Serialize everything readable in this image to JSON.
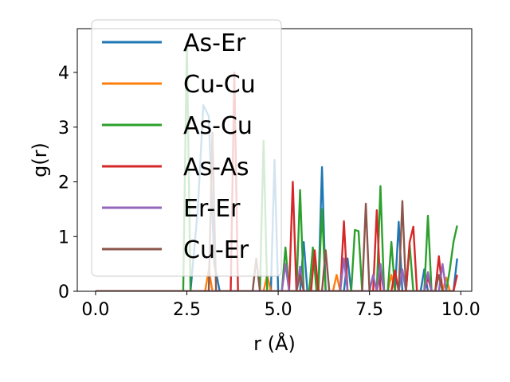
{
  "chart_data": {
    "type": "line",
    "title": "",
    "xlabel": "r (Å)",
    "ylabel": "g(r)",
    "xlim": [
      -0.5,
      10.3
    ],
    "ylim": [
      0,
      4.8
    ],
    "x_ticks": [
      0.0,
      2.5,
      5.0,
      7.5,
      10.0
    ],
    "x_tick_labels": [
      "0.0",
      "2.5",
      "5.0",
      "7.5",
      "10.0"
    ],
    "y_ticks": [
      0,
      1,
      2,
      3,
      4
    ],
    "y_tick_labels": [
      "0",
      "1",
      "2",
      "3",
      "4"
    ],
    "grid": false,
    "legend_position": "upper-left",
    "series": [
      {
        "name": "As-Er",
        "color": "#1f77b4",
        "points": [
          [
            0,
            0
          ],
          [
            2.5,
            0
          ],
          [
            2.6,
            0
          ],
          [
            2.8,
            1.5
          ],
          [
            2.95,
            3.4
          ],
          [
            3.1,
            3.2
          ],
          [
            3.25,
            0.5
          ],
          [
            3.4,
            0
          ],
          [
            4.8,
            0
          ],
          [
            4.9,
            2.4
          ],
          [
            5.0,
            0
          ],
          [
            5.6,
            0
          ],
          [
            5.7,
            0.9
          ],
          [
            5.8,
            0
          ],
          [
            6.1,
            0
          ],
          [
            6.2,
            2.27
          ],
          [
            6.3,
            0
          ],
          [
            6.8,
            0
          ],
          [
            6.9,
            0.6
          ],
          [
            7.0,
            0
          ],
          [
            7.7,
            0
          ],
          [
            7.8,
            0.35
          ],
          [
            7.9,
            0
          ],
          [
            8.2,
            0
          ],
          [
            8.3,
            1.27
          ],
          [
            8.4,
            0
          ],
          [
            8.9,
            0
          ],
          [
            9.0,
            0.4
          ],
          [
            9.1,
            0
          ],
          [
            9.8,
            0
          ],
          [
            9.9,
            0.6
          ]
        ]
      },
      {
        "name": "Cu-Cu",
        "color": "#ff7f0e",
        "points": [
          [
            0,
            0
          ],
          [
            3.0,
            0
          ],
          [
            3.1,
            0.4
          ],
          [
            3.2,
            0
          ],
          [
            4.6,
            0
          ],
          [
            4.7,
            0.3
          ],
          [
            4.8,
            0
          ],
          [
            6.5,
            0
          ],
          [
            6.6,
            0.3
          ],
          [
            6.7,
            0
          ],
          [
            8.0,
            0
          ],
          [
            8.1,
            0.3
          ],
          [
            8.2,
            0
          ],
          [
            9.5,
            0
          ],
          [
            9.6,
            0.25
          ],
          [
            9.7,
            0
          ]
        ]
      },
      {
        "name": "As-Cu",
        "color": "#2ca02c",
        "points": [
          [
            0,
            0
          ],
          [
            2.4,
            0
          ],
          [
            2.5,
            4.55
          ],
          [
            2.6,
            0
          ],
          [
            4.5,
            0
          ],
          [
            4.6,
            2.75
          ],
          [
            4.7,
            0
          ],
          [
            5.1,
            0
          ],
          [
            5.2,
            0.8
          ],
          [
            5.3,
            0
          ],
          [
            5.5,
            0
          ],
          [
            5.6,
            1.85
          ],
          [
            5.7,
            0
          ],
          [
            5.85,
            0
          ],
          [
            5.95,
            0.8
          ],
          [
            6.05,
            0
          ],
          [
            6.1,
            0
          ],
          [
            6.2,
            1.5
          ],
          [
            6.3,
            0
          ],
          [
            7.0,
            0
          ],
          [
            7.1,
            1.12
          ],
          [
            7.2,
            1.1
          ],
          [
            7.3,
            0
          ],
          [
            7.7,
            0
          ],
          [
            7.8,
            1.92
          ],
          [
            7.9,
            0
          ],
          [
            8.0,
            0
          ],
          [
            8.1,
            0.9
          ],
          [
            8.2,
            0
          ],
          [
            8.5,
            0
          ],
          [
            8.6,
            0.85
          ],
          [
            8.7,
            0
          ],
          [
            9.0,
            0
          ],
          [
            9.1,
            1.38
          ],
          [
            9.2,
            0
          ],
          [
            9.6,
            0
          ],
          [
            9.7,
            0.4
          ],
          [
            9.8,
            0.9
          ],
          [
            9.9,
            1.2
          ]
        ]
      },
      {
        "name": "As-As",
        "color": "#d62728",
        "points": [
          [
            0,
            0
          ],
          [
            3.7,
            0
          ],
          [
            3.8,
            4.0
          ],
          [
            3.9,
            0
          ],
          [
            5.3,
            0
          ],
          [
            5.4,
            2.0
          ],
          [
            5.5,
            0
          ],
          [
            5.9,
            0
          ],
          [
            6.0,
            0.75
          ],
          [
            6.1,
            0
          ],
          [
            6.7,
            0
          ],
          [
            6.8,
            1.28
          ],
          [
            6.9,
            0
          ],
          [
            7.6,
            0
          ],
          [
            7.7,
            1.48
          ],
          [
            7.8,
            0
          ],
          [
            8.1,
            0
          ],
          [
            8.2,
            0.38
          ],
          [
            8.3,
            0
          ],
          [
            8.5,
            0
          ],
          [
            8.6,
            0.9
          ],
          [
            8.7,
            1.18
          ],
          [
            8.8,
            0
          ],
          [
            9.0,
            0
          ],
          [
            9.1,
            0.25
          ],
          [
            9.2,
            0
          ],
          [
            9.3,
            0
          ],
          [
            9.4,
            0.64
          ],
          [
            9.5,
            0
          ],
          [
            9.8,
            0
          ],
          [
            9.9,
            0.3
          ]
        ]
      },
      {
        "name": "Er-Er",
        "color": "#9467bd",
        "points": [
          [
            0,
            0
          ],
          [
            5.1,
            0
          ],
          [
            5.2,
            0.5
          ],
          [
            5.3,
            0
          ],
          [
            5.5,
            0
          ],
          [
            5.6,
            0.45
          ],
          [
            5.7,
            0
          ],
          [
            6.7,
            0
          ],
          [
            6.8,
            0.6
          ],
          [
            6.9,
            0
          ],
          [
            7.5,
            0
          ],
          [
            7.6,
            0.3
          ],
          [
            7.7,
            0
          ],
          [
            7.8,
            0.5
          ],
          [
            7.9,
            0
          ],
          [
            8.3,
            0
          ],
          [
            8.4,
            0.4
          ],
          [
            8.5,
            0
          ],
          [
            9.0,
            0
          ],
          [
            9.1,
            0.35
          ],
          [
            9.2,
            0
          ],
          [
            9.4,
            0
          ],
          [
            9.5,
            0.5
          ],
          [
            9.6,
            0
          ]
        ]
      },
      {
        "name": "Cu-Er",
        "color": "#8c564b",
        "points": [
          [
            0,
            0
          ],
          [
            3.1,
            0
          ],
          [
            3.2,
            2.9
          ],
          [
            3.3,
            0
          ],
          [
            4.3,
            0
          ],
          [
            4.4,
            0.6
          ],
          [
            4.5,
            0
          ],
          [
            5.5,
            0
          ],
          [
            5.6,
            0.3
          ],
          [
            5.7,
            0
          ],
          [
            6.2,
            0
          ],
          [
            6.3,
            0.75
          ],
          [
            6.4,
            0
          ],
          [
            7.3,
            0
          ],
          [
            7.4,
            1.6
          ],
          [
            7.5,
            0
          ],
          [
            8.3,
            0
          ],
          [
            8.4,
            1.65
          ],
          [
            8.5,
            0
          ],
          [
            9.3,
            0
          ],
          [
            9.4,
            0.3
          ],
          [
            9.5,
            0
          ],
          [
            9.8,
            0
          ]
        ]
      }
    ]
  }
}
